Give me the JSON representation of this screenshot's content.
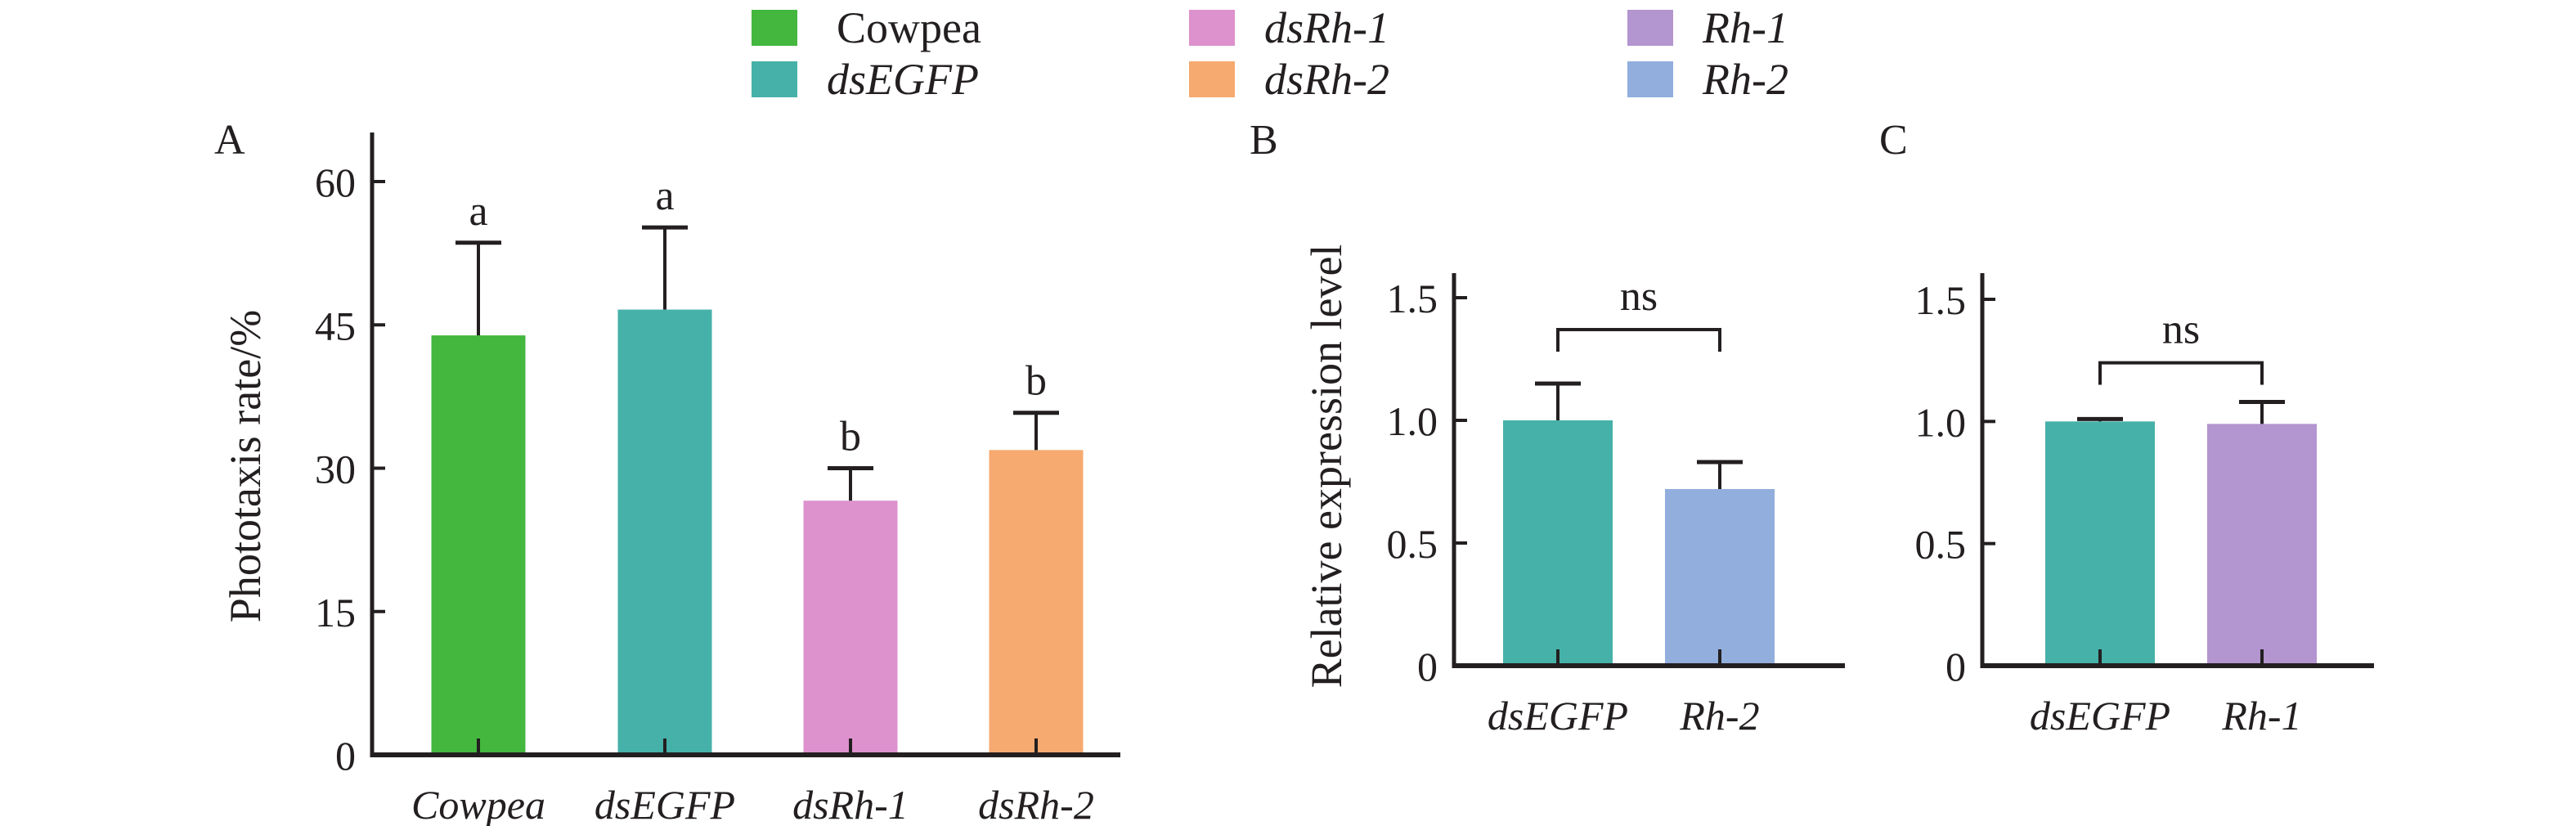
{
  "legend": {
    "items": [
      {
        "label": "Cowpea",
        "color": "#43B73E",
        "italic": false
      },
      {
        "label": "dsEGFP",
        "color": "#46B1A9",
        "italic": true
      },
      {
        "label": "dsRh-1",
        "color": "#DD91CD",
        "italic": true
      },
      {
        "label": "dsRh-2",
        "color": "#F6AA70",
        "italic": true
      },
      {
        "label": "Rh-1",
        "color": "#B395CF",
        "italic": true
      },
      {
        "label": "Rh-2",
        "color": "#91AEDD",
        "italic": true
      }
    ]
  },
  "chart_data": [
    {
      "panel": "A",
      "type": "bar",
      "title": "",
      "xlabel": "",
      "ylabel": "Phototaxis rate/%",
      "ylim": [
        0,
        65
      ],
      "yticks": [
        0,
        15,
        30,
        45,
        60
      ],
      "grid": false,
      "categories": [
        "Cowpea",
        "dsEGFP",
        "dsRh-1",
        "dsRh-2"
      ],
      "category_italic": [
        true,
        true,
        true,
        true
      ],
      "values": [
        43.9,
        46.6,
        26.6,
        31.9
      ],
      "error_upper": [
        53.6,
        55.2,
        30.0,
        35.8
      ],
      "colors": [
        "#43B73E",
        "#46B1A9",
        "#DD91CD",
        "#F6AA70"
      ],
      "annotations": [
        "a",
        "a",
        "b",
        "b"
      ]
    },
    {
      "panel": "B",
      "type": "bar",
      "title": "",
      "xlabel": "",
      "ylabel": "Relative expression level",
      "ylim": [
        0,
        1.6
      ],
      "yticks": [
        0,
        0.5,
        1.0,
        1.5
      ],
      "ytick_labels": [
        "0",
        "0.5",
        "1.0",
        "1.5"
      ],
      "grid": false,
      "categories": [
        "dsEGFP",
        "Rh-2"
      ],
      "values": [
        1.0,
        0.72
      ],
      "error_upper": [
        1.15,
        0.83
      ],
      "colors": [
        "#46B1A9",
        "#91AEDD"
      ],
      "comparison": {
        "label": "ns",
        "level": 1.37,
        "leg_bottom": 1.28
      }
    },
    {
      "panel": "C",
      "type": "bar",
      "title": "",
      "xlabel": "",
      "ylabel": "",
      "ylim": [
        0,
        1.6
      ],
      "yticks": [
        0,
        0.5,
        1.0,
        1.5
      ],
      "ytick_labels": [
        "0",
        "0.5",
        "1.0",
        "1.5"
      ],
      "grid": false,
      "categories": [
        "dsEGFP",
        "Rh-1"
      ],
      "values": [
        1.0,
        0.99
      ],
      "error_upper": [
        1.01,
        1.08
      ],
      "colors": [
        "#46B1A9",
        "#B395CF"
      ],
      "comparison": {
        "label": "ns",
        "level": 1.24,
        "leg_bottom": 1.15
      }
    }
  ]
}
